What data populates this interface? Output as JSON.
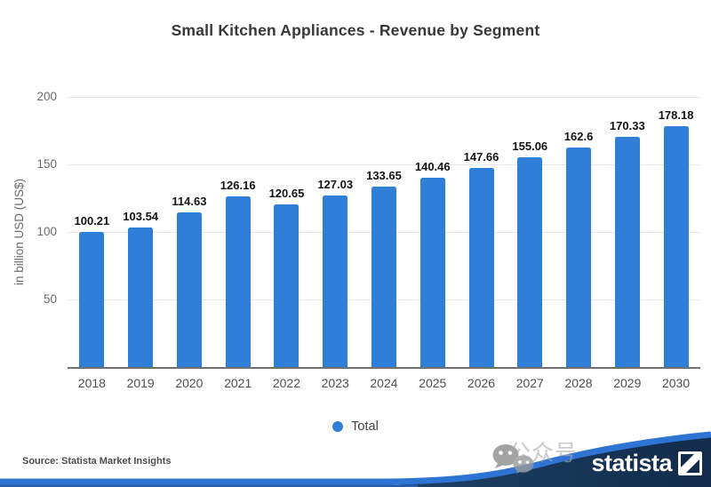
{
  "title": "Small Kitchen Appliances - Revenue by Segment",
  "y_axis": {
    "label": "in billion USD (US$)",
    "ticks": [
      200,
      150,
      100,
      50
    ]
  },
  "legend": {
    "label": "Total"
  },
  "source": "Source: Statista Market Insights",
  "branding": {
    "logo_text": "statista",
    "watermark_text": "公众号",
    "wechat_icon": "wechat-icon",
    "statista_mark_icon": "statista-square-icon"
  },
  "colors": {
    "bar": "#2f7ed8",
    "accent_blue": "#2f74d4",
    "footer_navy": "#16355a",
    "grid": "#e7e7e7"
  },
  "chart_data": {
    "type": "bar",
    "title": "Small Kitchen Appliances - Revenue by Segment",
    "xlabel": "",
    "ylabel": "in billion USD (US$)",
    "ylim": [
      0,
      200
    ],
    "grid": true,
    "legend_position": "bottom",
    "series_name": "Total",
    "categories": [
      "2018",
      "2019",
      "2020",
      "2021",
      "2022",
      "2023",
      "2024",
      "2025",
      "2026",
      "2027",
      "2028",
      "2029",
      "2030"
    ],
    "values": [
      100.21,
      103.54,
      114.63,
      126.16,
      120.65,
      127.03,
      133.65,
      140.46,
      147.66,
      155.06,
      162.6,
      170.33,
      178.18
    ],
    "value_labels": [
      "100.21",
      "103.54",
      "114.63",
      "126.16",
      "120.65",
      "127.03",
      "133.65",
      "140.46",
      "147.66",
      "155.06",
      "162.6",
      "170.33",
      "178.18"
    ]
  }
}
